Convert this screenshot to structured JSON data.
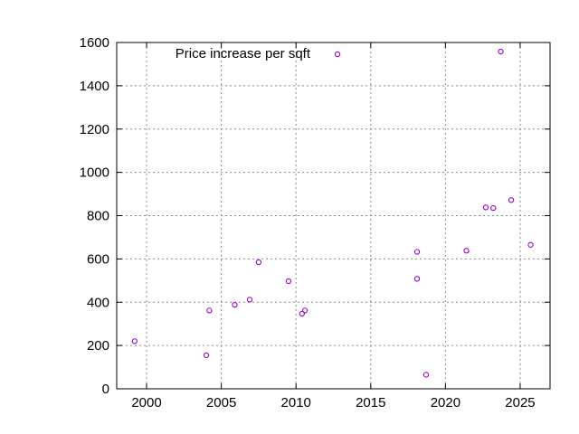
{
  "chart_data": {
    "type": "scatter",
    "title": "",
    "xlabel": "",
    "ylabel": "",
    "xlim": [
      1998,
      2027
    ],
    "ylim": [
      0,
      1600
    ],
    "xticks": [
      2000,
      2005,
      2010,
      2015,
      2020,
      2025
    ],
    "yticks": [
      0,
      200,
      400,
      600,
      800,
      1000,
      1200,
      1400,
      1600
    ],
    "grid": true,
    "legend_position": "top-left",
    "series": [
      {
        "name": "Price increase per sqft",
        "color": "#9400d3",
        "marker": "circle",
        "points": [
          {
            "x": 1999.2,
            "y": 220
          },
          {
            "x": 2004.0,
            "y": 155
          },
          {
            "x": 2004.2,
            "y": 362
          },
          {
            "x": 2005.9,
            "y": 388
          },
          {
            "x": 2006.9,
            "y": 412
          },
          {
            "x": 2007.5,
            "y": 585
          },
          {
            "x": 2009.5,
            "y": 497
          },
          {
            "x": 2010.4,
            "y": 347
          },
          {
            "x": 2010.6,
            "y": 362
          },
          {
            "x": 2018.1,
            "y": 633
          },
          {
            "x": 2018.1,
            "y": 508
          },
          {
            "x": 2018.7,
            "y": 65
          },
          {
            "x": 2021.4,
            "y": 638
          },
          {
            "x": 2022.7,
            "y": 838
          },
          {
            "x": 2023.2,
            "y": 835
          },
          {
            "x": 2023.7,
            "y": 1558
          },
          {
            "x": 2024.4,
            "y": 872
          },
          {
            "x": 2025.7,
            "y": 665
          }
        ]
      }
    ]
  }
}
